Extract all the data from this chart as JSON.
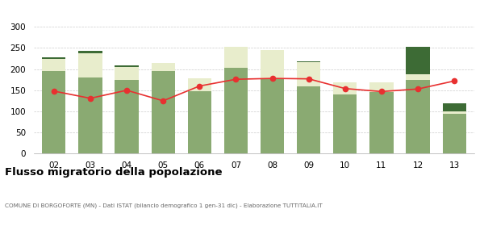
{
  "years": [
    "02",
    "03",
    "04",
    "05",
    "06",
    "07",
    "08",
    "09",
    "10",
    "11",
    "12",
    "13"
  ],
  "iscritti_comuni": [
    196,
    180,
    175,
    196,
    148,
    204,
    177,
    159,
    141,
    146,
    175,
    95
  ],
  "iscritti_estero": [
    28,
    58,
    30,
    18,
    30,
    48,
    68,
    57,
    27,
    22,
    12,
    5
  ],
  "iscritti_altri": [
    4,
    5,
    3,
    0,
    0,
    0,
    0,
    3,
    0,
    0,
    65,
    20
  ],
  "cancellati": [
    148,
    131,
    150,
    125,
    160,
    176,
    178,
    177,
    154,
    147,
    153,
    172
  ],
  "color_comuni": "#8aaa72",
  "color_estero": "#e8edcc",
  "color_altri": "#3d6b35",
  "color_cancellati": "#e83030",
  "ylim": [
    0,
    310
  ],
  "yticks": [
    0,
    50,
    100,
    150,
    200,
    250,
    300
  ],
  "title": "Flusso migratorio della popolazione",
  "subtitle": "COMUNE DI BORGOFORTE (MN) - Dati ISTAT (bilancio demografico 1 gen-31 dic) - Elaborazione TUTTITALIA.IT",
  "bg_color": "#ffffff",
  "grid_color": "#cccccc"
}
